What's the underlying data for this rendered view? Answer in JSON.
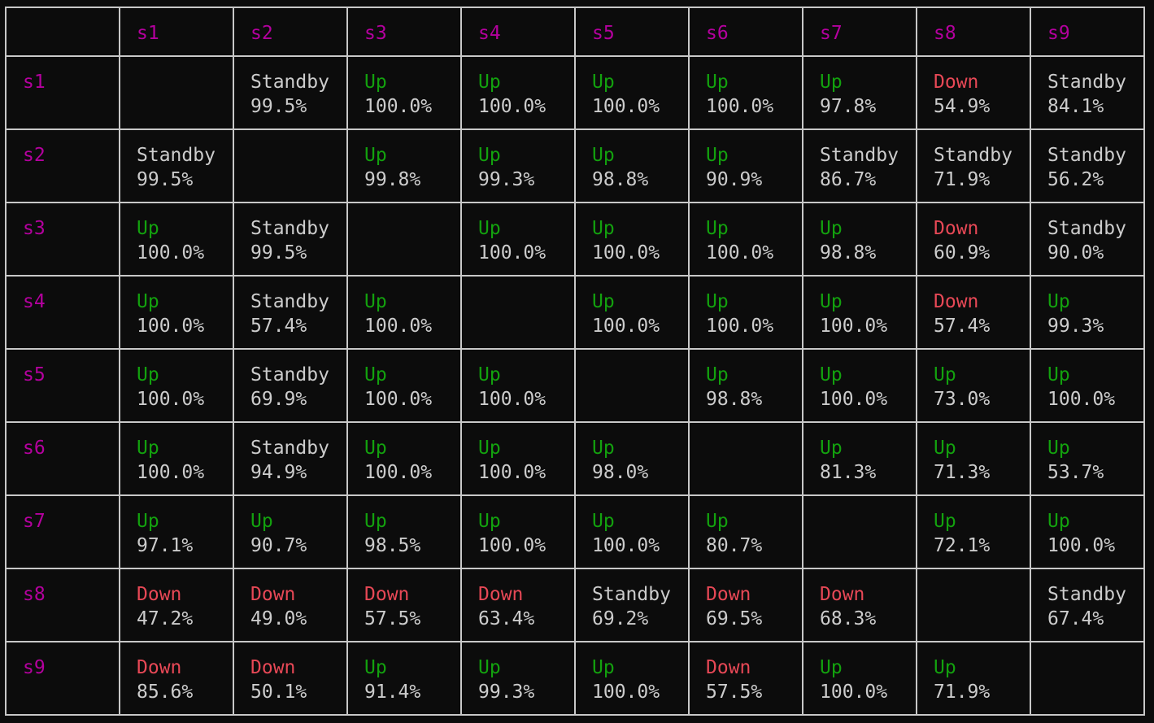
{
  "colors": {
    "background": "#0c0c0c",
    "grid": "#c8c8c8",
    "header": "#b4009e",
    "up": "#13a10e",
    "down": "#e74856",
    "standby": "#cccccc",
    "text": "#cccccc"
  },
  "columns": [
    "s1",
    "s2",
    "s3",
    "s4",
    "s5",
    "s6",
    "s7",
    "s8",
    "s9"
  ],
  "rows": [
    {
      "label": "s1",
      "cells": [
        null,
        {
          "status": "Standby",
          "pct": "99.5%"
        },
        {
          "status": "Up",
          "pct": "100.0%"
        },
        {
          "status": "Up",
          "pct": "100.0%"
        },
        {
          "status": "Up",
          "pct": "100.0%"
        },
        {
          "status": "Up",
          "pct": "100.0%"
        },
        {
          "status": "Up",
          "pct": "97.8%"
        },
        {
          "status": "Down",
          "pct": "54.9%"
        },
        {
          "status": "Standby",
          "pct": "84.1%"
        }
      ]
    },
    {
      "label": "s2",
      "cells": [
        {
          "status": "Standby",
          "pct": "99.5%"
        },
        null,
        {
          "status": "Up",
          "pct": "99.8%"
        },
        {
          "status": "Up",
          "pct": "99.3%"
        },
        {
          "status": "Up",
          "pct": "98.8%"
        },
        {
          "status": "Up",
          "pct": "90.9%"
        },
        {
          "status": "Standby",
          "pct": "86.7%"
        },
        {
          "status": "Standby",
          "pct": "71.9%"
        },
        {
          "status": "Standby",
          "pct": "56.2%"
        }
      ]
    },
    {
      "label": "s3",
      "cells": [
        {
          "status": "Up",
          "pct": "100.0%"
        },
        {
          "status": "Standby",
          "pct": "99.5%"
        },
        null,
        {
          "status": "Up",
          "pct": "100.0%"
        },
        {
          "status": "Up",
          "pct": "100.0%"
        },
        {
          "status": "Up",
          "pct": "100.0%"
        },
        {
          "status": "Up",
          "pct": "98.8%"
        },
        {
          "status": "Down",
          "pct": "60.9%"
        },
        {
          "status": "Standby",
          "pct": "90.0%"
        }
      ]
    },
    {
      "label": "s4",
      "cells": [
        {
          "status": "Up",
          "pct": "100.0%"
        },
        {
          "status": "Standby",
          "pct": "57.4%"
        },
        {
          "status": "Up",
          "pct": "100.0%"
        },
        null,
        {
          "status": "Up",
          "pct": "100.0%"
        },
        {
          "status": "Up",
          "pct": "100.0%"
        },
        {
          "status": "Up",
          "pct": "100.0%"
        },
        {
          "status": "Down",
          "pct": "57.4%"
        },
        {
          "status": "Up",
          "pct": "99.3%"
        }
      ]
    },
    {
      "label": "s5",
      "cells": [
        {
          "status": "Up",
          "pct": "100.0%"
        },
        {
          "status": "Standby",
          "pct": "69.9%"
        },
        {
          "status": "Up",
          "pct": "100.0%"
        },
        {
          "status": "Up",
          "pct": "100.0%"
        },
        null,
        {
          "status": "Up",
          "pct": "98.8%"
        },
        {
          "status": "Up",
          "pct": "100.0%"
        },
        {
          "status": "Up",
          "pct": "73.0%"
        },
        {
          "status": "Up",
          "pct": "100.0%"
        }
      ]
    },
    {
      "label": "s6",
      "cells": [
        {
          "status": "Up",
          "pct": "100.0%"
        },
        {
          "status": "Standby",
          "pct": "94.9%"
        },
        {
          "status": "Up",
          "pct": "100.0%"
        },
        {
          "status": "Up",
          "pct": "100.0%"
        },
        {
          "status": "Up",
          "pct": "98.0%"
        },
        null,
        {
          "status": "Up",
          "pct": "81.3%"
        },
        {
          "status": "Up",
          "pct": "71.3%"
        },
        {
          "status": "Up",
          "pct": "53.7%"
        }
      ]
    },
    {
      "label": "s7",
      "cells": [
        {
          "status": "Up",
          "pct": "97.1%"
        },
        {
          "status": "Up",
          "pct": "90.7%"
        },
        {
          "status": "Up",
          "pct": "98.5%"
        },
        {
          "status": "Up",
          "pct": "100.0%"
        },
        {
          "status": "Up",
          "pct": "100.0%"
        },
        {
          "status": "Up",
          "pct": "80.7%"
        },
        null,
        {
          "status": "Up",
          "pct": "72.1%"
        },
        {
          "status": "Up",
          "pct": "100.0%"
        }
      ]
    },
    {
      "label": "s8",
      "cells": [
        {
          "status": "Down",
          "pct": "47.2%"
        },
        {
          "status": "Down",
          "pct": "49.0%"
        },
        {
          "status": "Down",
          "pct": "57.5%"
        },
        {
          "status": "Down",
          "pct": "63.4%"
        },
        {
          "status": "Standby",
          "pct": "69.2%"
        },
        {
          "status": "Down",
          "pct": "69.5%"
        },
        {
          "status": "Down",
          "pct": "68.3%"
        },
        null,
        {
          "status": "Standby",
          "pct": "67.4%"
        }
      ]
    },
    {
      "label": "s9",
      "cells": [
        {
          "status": "Down",
          "pct": "85.6%"
        },
        {
          "status": "Down",
          "pct": "50.1%"
        },
        {
          "status": "Up",
          "pct": "91.4%"
        },
        {
          "status": "Up",
          "pct": "99.3%"
        },
        {
          "status": "Up",
          "pct": "100.0%"
        },
        {
          "status": "Down",
          "pct": "57.5%"
        },
        {
          "status": "Up",
          "pct": "100.0%"
        },
        {
          "status": "Up",
          "pct": "71.9%"
        },
        null
      ]
    }
  ]
}
